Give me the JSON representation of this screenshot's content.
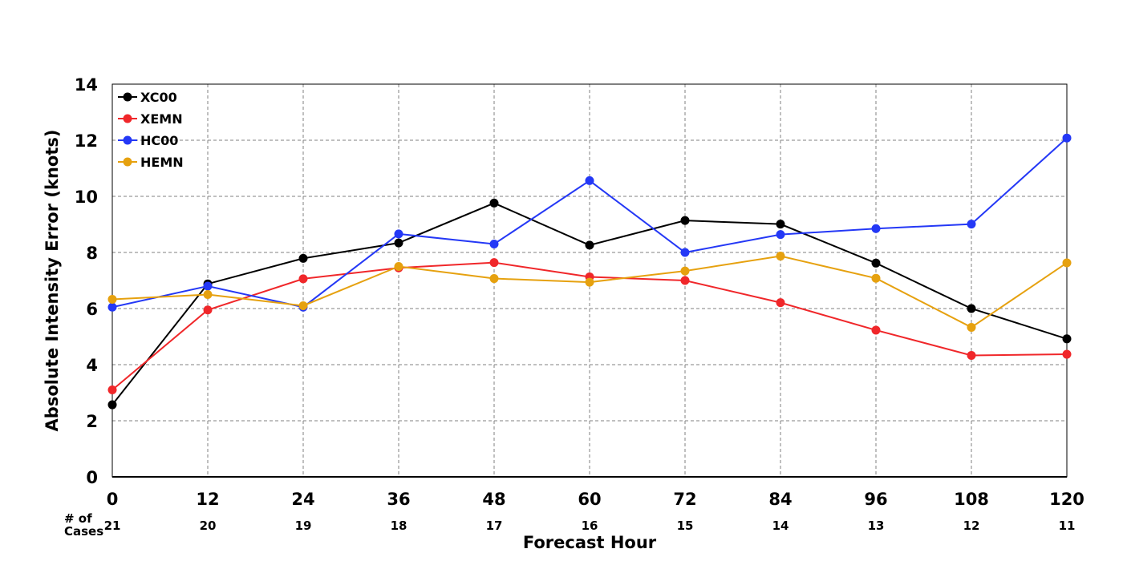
{
  "chart_data": {
    "type": "line",
    "xlabel": "Forecast Hour",
    "ylabel": "Absolute Intensity Error (knots)",
    "x": [
      0,
      12,
      24,
      36,
      48,
      60,
      72,
      84,
      96,
      108,
      120
    ],
    "xlim": [
      0,
      120
    ],
    "ylim": [
      0,
      14
    ],
    "yticks": [
      0,
      2,
      4,
      6,
      8,
      10,
      12,
      14
    ],
    "grid": true,
    "legend_position": "top-left",
    "cases_label": "# of\nCases",
    "cases": [
      21,
      20,
      19,
      18,
      17,
      16,
      15,
      14,
      13,
      12,
      11
    ],
    "series": [
      {
        "name": "XC00",
        "color": "#000000",
        "values": [
          2.57,
          6.88,
          7.79,
          8.34,
          9.76,
          8.26,
          9.14,
          9.01,
          7.62,
          6.0,
          4.92
        ]
      },
      {
        "name": "XEMN",
        "color": "#f0272a",
        "values": [
          3.1,
          5.95,
          7.06,
          7.45,
          7.64,
          7.13,
          7.0,
          6.21,
          5.23,
          4.33,
          4.37
        ]
      },
      {
        "name": "HC00",
        "color": "#2438f6",
        "values": [
          6.05,
          6.8,
          6.05,
          8.66,
          8.3,
          10.56,
          8.0,
          8.64,
          8.85,
          9.01,
          12.08
        ]
      },
      {
        "name": "HEMN",
        "color": "#e6a10f",
        "values": [
          6.33,
          6.5,
          6.1,
          7.5,
          7.07,
          6.94,
          7.34,
          7.87,
          7.08,
          5.33,
          7.63
        ]
      }
    ]
  }
}
